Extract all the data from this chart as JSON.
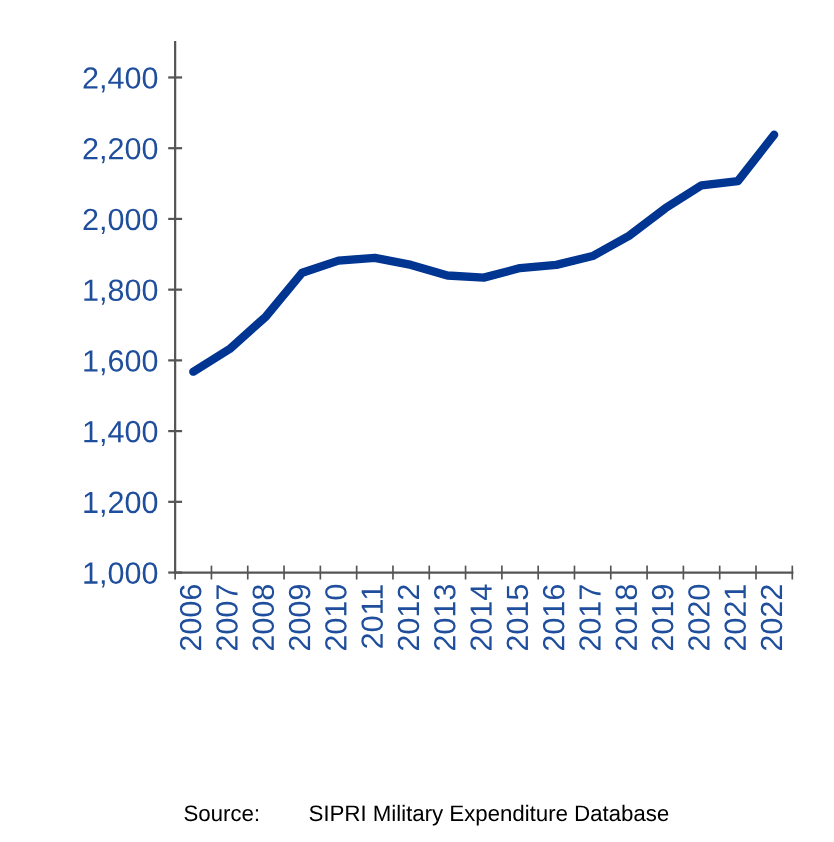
{
  "chart_data": {
    "type": "line",
    "categories": [
      "2006",
      "2007",
      "2008",
      "2009",
      "2010",
      "2011",
      "2012",
      "2013",
      "2014",
      "2015",
      "2016",
      "2017",
      "2018",
      "2019",
      "2020",
      "2021",
      "2022"
    ],
    "series": [
      {
        "color": "#003591",
        "values": [
          1568,
          1632,
          1724,
          1848,
          1882,
          1890,
          1870,
          1840,
          1834,
          1861,
          1870,
          1895,
          1952,
          2030,
          2095,
          2107,
          2238
        ]
      }
    ],
    "ylim": [
      1000,
      2500
    ],
    "yticks": [
      {
        "value": 1000,
        "label": "1,000"
      },
      {
        "value": 1200,
        "label": "1,200"
      },
      {
        "value": 1400,
        "label": "1,400"
      },
      {
        "value": 1600,
        "label": "1,600"
      },
      {
        "value": 1800,
        "label": "1,800"
      },
      {
        "value": 2000,
        "label": "2,000"
      },
      {
        "value": 2200,
        "label": "2,200"
      },
      {
        "value": 2400,
        "label": "2,400"
      }
    ],
    "grid": false,
    "legend": false,
    "marker": "none",
    "line_style": "solid",
    "annotations": [
      "Source:",
      "SIPRI Military Expenditure Database"
    ]
  }
}
